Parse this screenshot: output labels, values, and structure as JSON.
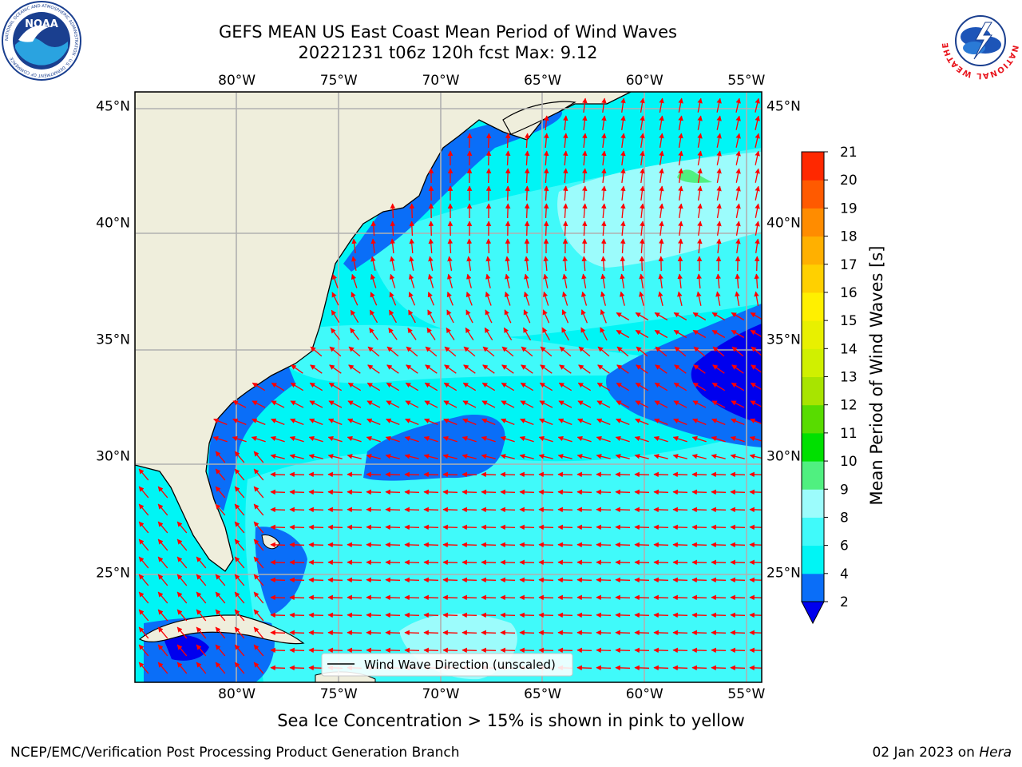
{
  "header": {
    "title_line1": "GEFS MEAN US East Coast Mean Period of Wind Waves",
    "title_line2": "20221231 t06z 120h fcst   Max: 9.12"
  },
  "logos": {
    "noaa_text": "NOAA",
    "noaa_ring_text": "NATIONAL OCEANIC AND ATMOSPHERIC ADMINISTRATION · U.S. DEPARTMENT OF COMMERCE",
    "nws_ring_text": "NATIONAL WEATHER SERVICE"
  },
  "map": {
    "lon_range": [
      -85,
      -54.25
    ],
    "lat_range": [
      20.3,
      45.6
    ],
    "lon_labels": [
      "80°W",
      "75°W",
      "70°W",
      "65°W",
      "60°W",
      "55°W"
    ],
    "lon_values": [
      -80,
      -75,
      -70,
      -65,
      -60,
      -55
    ],
    "lat_labels": [
      "45°N",
      "40°N",
      "35°N",
      "30°N",
      "25°N"
    ],
    "lat_values": [
      45,
      40,
      35,
      30,
      25
    ],
    "grid": true,
    "legend_text": "Wind Wave Direction (unscaled)",
    "legend_placement": "bottom-center",
    "arrow_color": "#ff0000",
    "land_color": "#efeedc"
  },
  "colorbar": {
    "label": "Mean Period of Wind Waves [s]",
    "ticks": [
      "21",
      "20",
      "19",
      "18",
      "17",
      "16",
      "15",
      "14",
      "13",
      "12",
      "11",
      "10",
      "9",
      "8",
      "6",
      "4",
      "2"
    ],
    "levels": [
      2,
      4,
      6,
      8,
      9,
      10,
      11,
      12,
      13,
      14,
      15,
      16,
      17,
      18,
      19,
      20,
      21
    ],
    "colors": [
      "#0a6ef8",
      "#00f5f5",
      "#40fafa",
      "#9cfcfc",
      "#50f080",
      "#00e000",
      "#58dc00",
      "#a8e400",
      "#d0f000",
      "#e8f000",
      "#fff000",
      "#ffd000",
      "#ffb000",
      "#ff8c00",
      "#ff5a00",
      "#ff2800"
    ],
    "under_color": "#0000ee"
  },
  "chart_data": {
    "type": "heatmap",
    "title": "GEFS MEAN US East Coast Mean Period of Wind Waves",
    "max_value": 9.12,
    "units": "s",
    "xlim": [
      -85,
      -54.25
    ],
    "ylim": [
      20.3,
      45.6
    ]
  },
  "note": "Sea Ice Concentration > 15% is shown in pink to yellow",
  "footer": {
    "left": "NCEP/EMC/Verification Post Processing Product Generation Branch",
    "date": "02 Jan 2023 on ",
    "host": "Hera"
  }
}
